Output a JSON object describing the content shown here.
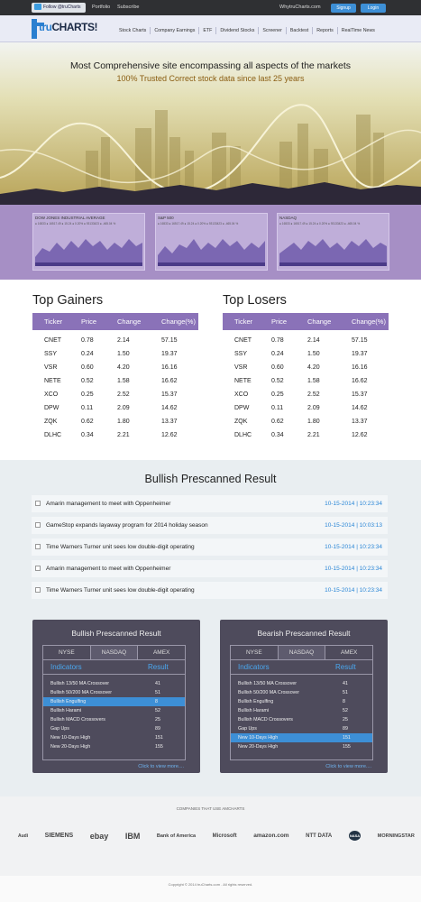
{
  "topbar": {
    "twitter_label": "Follow @truCharts",
    "links": [
      "Portfolio",
      "Subscribe"
    ],
    "why_label": "WhytruCharts.com",
    "signup_label": "Signup",
    "login_label": "Login"
  },
  "nav": {
    "logo_text_a": "tru",
    "logo_text_b": "CHARTS!",
    "items": [
      "Stock Charts",
      "Company Earnings",
      "ETF",
      "Dividend Stocks",
      "Screener",
      "Backtest",
      "Reports",
      "RealTime News"
    ]
  },
  "hero": {
    "title": "Most Comprehensive site encompassing all aspects of the markets",
    "subtitle": "100% Trusted Correct stock data since last 25 years"
  },
  "dashboard": {
    "panels": [
      {
        "title": "DOW JONES INDUSTRIAL AVERAGE",
        "figures": "● 16533 ● 16517.49 ● 15.24 ● 0.20% ● 93133423 ● -465.04 %"
      },
      {
        "title": "S&P 500",
        "figures": "● 16533 ● 16517.49 ● 15.24 ● 0.20% ● 93133423 ● -465.04 %"
      },
      {
        "title": "NASDAQ",
        "figures": "● 16533 ● 16517.49 ● 15.24 ● 0.20% ● 93133423 ● -465.04 %"
      }
    ]
  },
  "gainers": {
    "title": "Top Gainers",
    "headers": [
      "Ticker",
      "Price",
      "Change",
      "Change(%)"
    ],
    "rows": [
      [
        "CNET",
        "0.78",
        "2.14",
        "57.15"
      ],
      [
        "SSY",
        "0.24",
        "1.50",
        "19.37"
      ],
      [
        "VSR",
        "0.60",
        "4.20",
        "16.16"
      ],
      [
        "NETE",
        "0.52",
        "1.58",
        "16.62"
      ],
      [
        "XCO",
        "0.25",
        "2.52",
        "15.37"
      ],
      [
        "DPW",
        "0.11",
        "2.09",
        "14.62"
      ],
      [
        "ZQK",
        "0.62",
        "1.80",
        "13.37"
      ],
      [
        "DLHC",
        "0.34",
        "2.21",
        "12.62"
      ]
    ]
  },
  "losers": {
    "title": "Top Losers",
    "headers": [
      "Ticker",
      "Price",
      "Change",
      "Change(%)"
    ],
    "rows": [
      [
        "CNET",
        "0.78",
        "2.14",
        "57.15"
      ],
      [
        "SSY",
        "0.24",
        "1.50",
        "19.37"
      ],
      [
        "VSR",
        "0.60",
        "4.20",
        "16.16"
      ],
      [
        "NETE",
        "0.52",
        "1.58",
        "16.62"
      ],
      [
        "XCO",
        "0.25",
        "2.52",
        "15.37"
      ],
      [
        "DPW",
        "0.11",
        "2.09",
        "14.62"
      ],
      [
        "ZQK",
        "0.62",
        "1.80",
        "13.37"
      ],
      [
        "DLHC",
        "0.34",
        "2.21",
        "12.62"
      ]
    ]
  },
  "news": {
    "title": "Bullish Prescanned Result",
    "items": [
      {
        "text": "Amarin management to meet with Oppenheimer",
        "date": "10-15-2014  |  10:23:34"
      },
      {
        "text": "GameStop expands layaway program for 2014 holiday season",
        "date": "10-15-2014  |  10:03:13"
      },
      {
        "text": "Time Warners Turner unit sees low double-digit operating",
        "date": "10-15-2014  |  10:23:34"
      },
      {
        "text": "Amarin management to meet with Oppenheimer",
        "date": "10-15-2014  |  10:23:34"
      },
      {
        "text": "Time Warners Turner unit sees low double-digit operating",
        "date": "10-15-2014  |  10:23:34"
      }
    ]
  },
  "scans": [
    {
      "title": "Bullish Prescanned Result",
      "tabs": [
        "NYSE",
        "NASDAQ",
        "AMEX"
      ],
      "head_left": "Indicators",
      "head_right": "Result",
      "rows": [
        [
          "Bullish 13/50 MA Crossover",
          "41"
        ],
        [
          "Bullish 50/200 MA Crossover",
          "51"
        ],
        [
          "Bullish Engulfing",
          "8"
        ],
        [
          "Bullish Harami",
          "52"
        ],
        [
          "Bullish MACD Crossovers",
          "25"
        ],
        [
          "Gap Ups",
          "89"
        ],
        [
          "New 10-Days High",
          "151"
        ],
        [
          "New 20-Days High",
          "155"
        ]
      ],
      "more": "Click to view more...."
    },
    {
      "title": "Bearish Prescanned Result",
      "tabs": [
        "NYSE",
        "NASDAQ",
        "AMEX"
      ],
      "head_left": "Indicators",
      "head_right": "Result",
      "rows": [
        [
          "Bullish 13/50 MA Crossover",
          "41"
        ],
        [
          "Bullish 50/200 MA Crossover",
          "51"
        ],
        [
          "Bullish Engulfing",
          "8"
        ],
        [
          "Bullish Harami",
          "52"
        ],
        [
          "Bullish MACD Crossovers",
          "25"
        ],
        [
          "Gap Ups",
          "89"
        ],
        [
          "New 10-Days High",
          "151"
        ],
        [
          "New 20-Days High",
          "155"
        ]
      ],
      "more": "Click to view more...."
    }
  ],
  "companies": {
    "title": "COMPANIES THAT USE AMCHARTS",
    "logos": [
      "Audi",
      "SIEMENS",
      "ebay",
      "IBM",
      "Bank of America",
      "Microsoft",
      "amazon.com",
      "NTT DATA",
      "NASA",
      "MORNINGSTAR"
    ]
  },
  "footer": {
    "text": "Copyright © 2014 truCharts.com . All rights reserved."
  }
}
